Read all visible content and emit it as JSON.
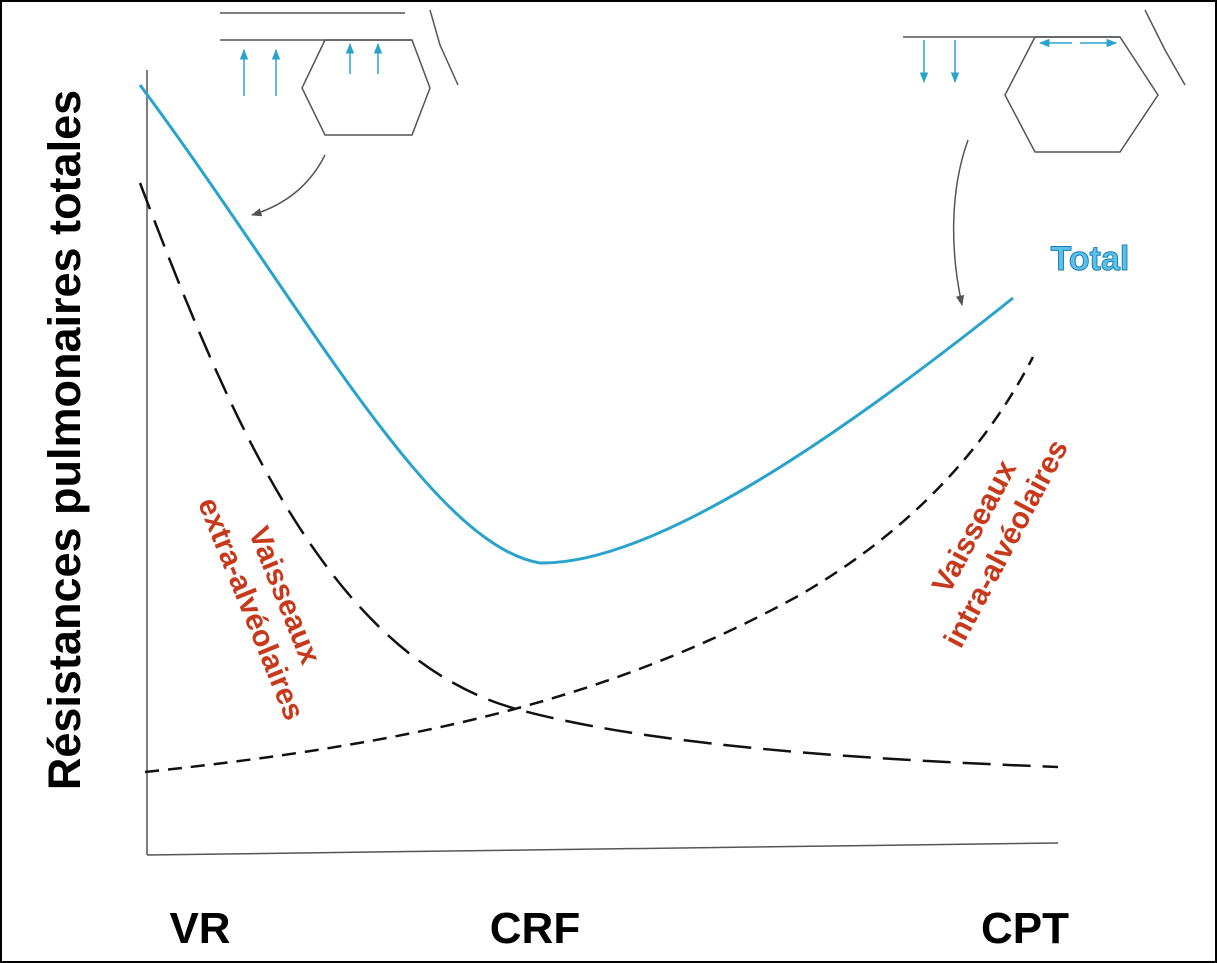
{
  "y_axis_label": "Résistances pulmonaires totales",
  "x_labels": [
    "VR",
    "CRF",
    "CPT"
  ],
  "curve_labels": {
    "total": "Total",
    "extra_alveolar": [
      "Vaisseaux",
      "extra-alvéolaires"
    ],
    "intra_alveolar": [
      "Vaisseaux",
      "intra-alvéolaires"
    ]
  }
}
